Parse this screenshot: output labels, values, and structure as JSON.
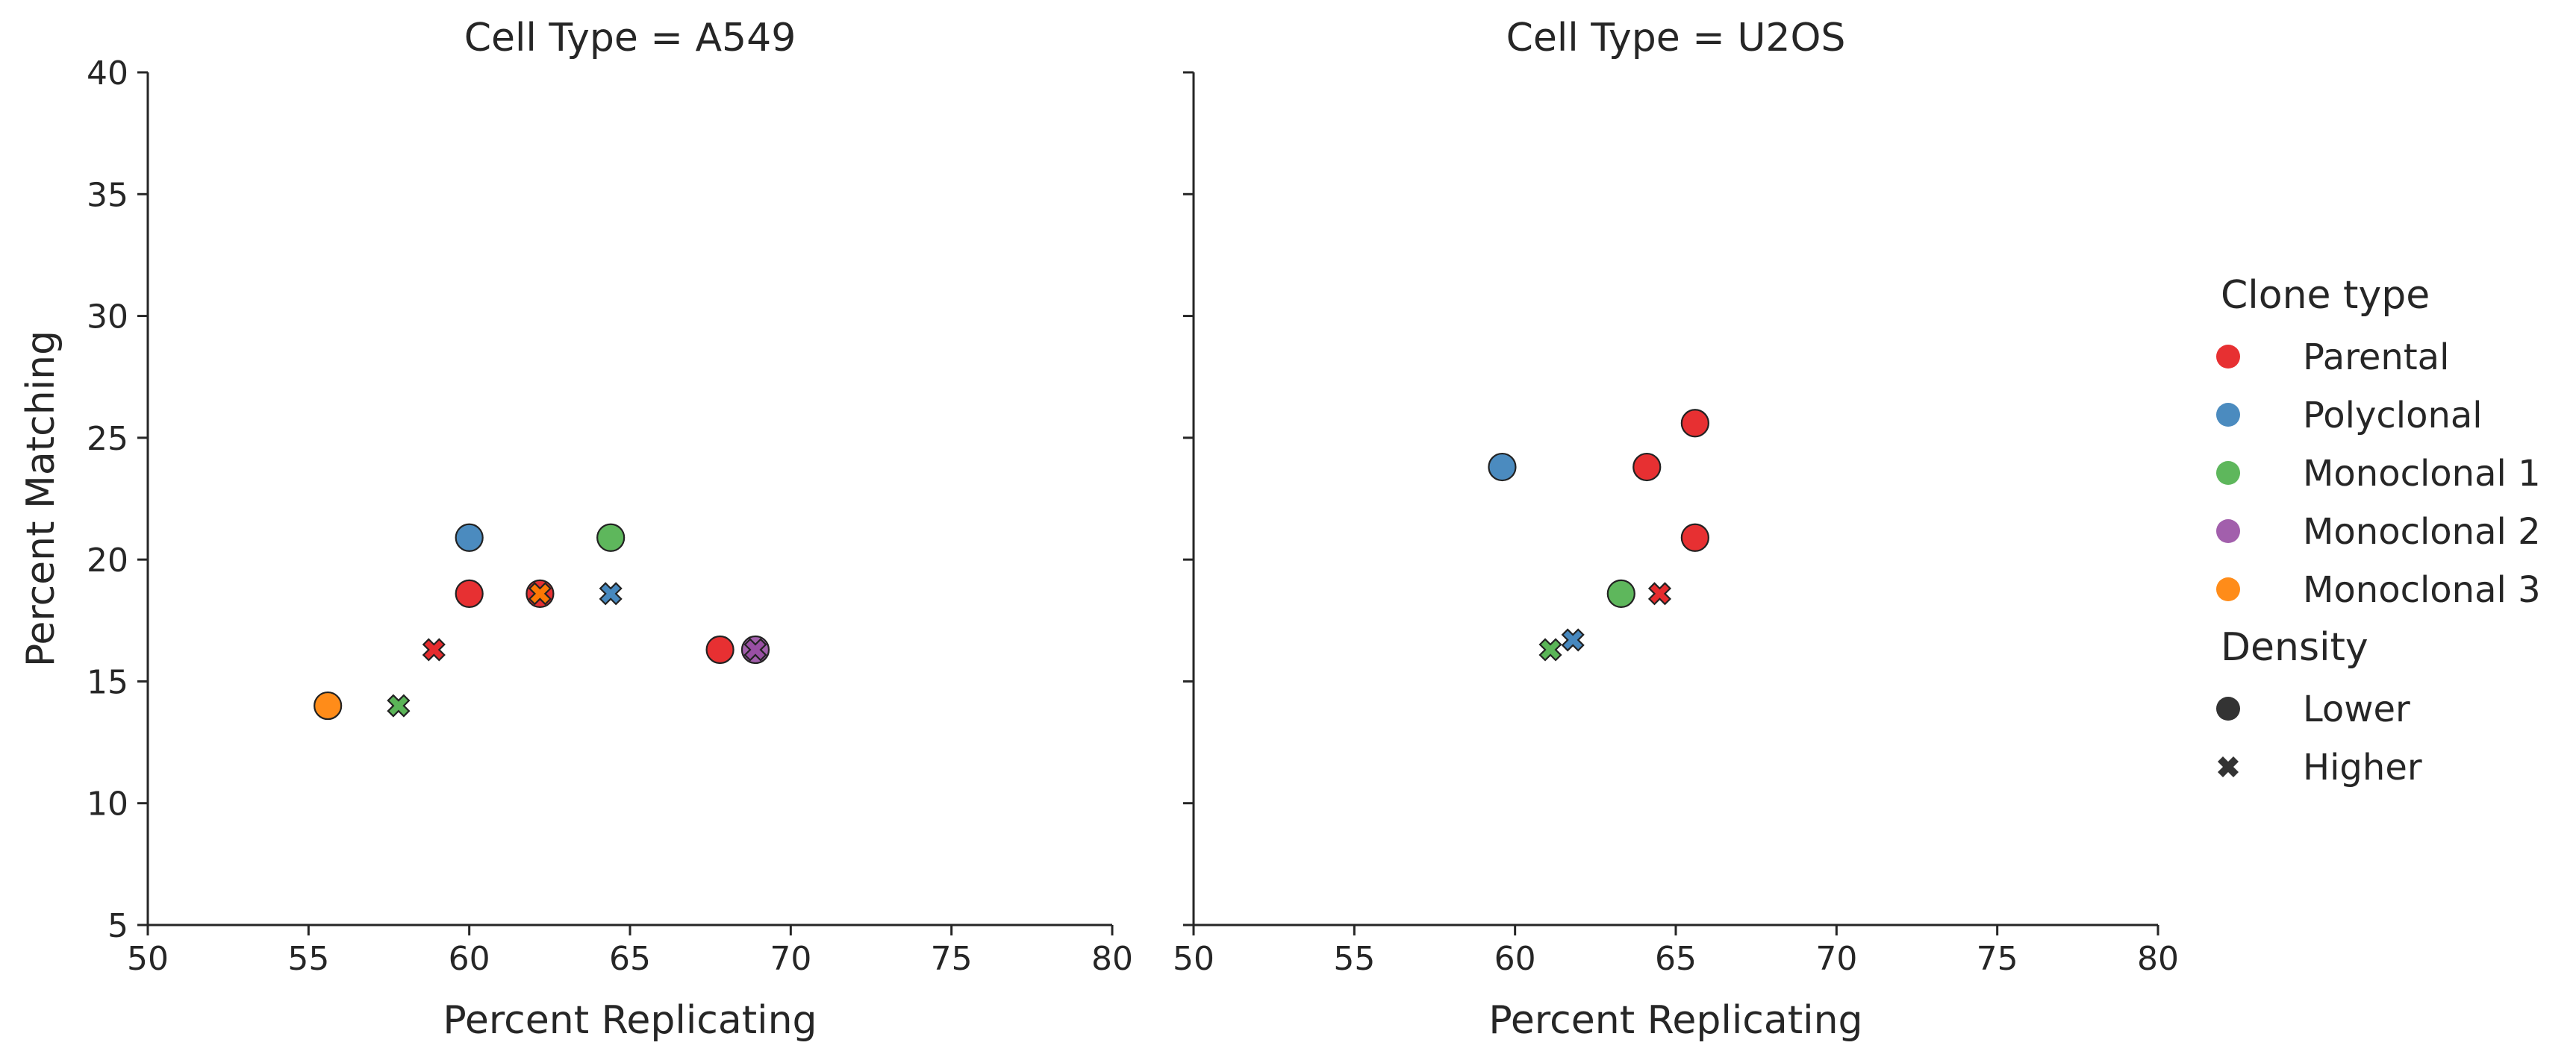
{
  "chart_data": {
    "type": "scatter",
    "xlabel": "Percent Replicating",
    "ylabel": "Percent Matching",
    "xlim": [
      50,
      80
    ],
    "ylim": [
      5,
      40
    ],
    "xticks": [
      "50",
      "55",
      "60",
      "65",
      "70",
      "75",
      "80"
    ],
    "yticks": [
      "5",
      "10",
      "15",
      "20",
      "25",
      "30",
      "35",
      "40"
    ],
    "grid": false,
    "legend_placement": "right",
    "panels": [
      {
        "title": "Cell Type = A549",
        "points": [
          {
            "x": 55.6,
            "y": 14.0,
            "clone": "Monoclonal 3",
            "density": "Lower"
          },
          {
            "x": 57.8,
            "y": 14.0,
            "clone": "Monoclonal 1",
            "density": "Higher"
          },
          {
            "x": 58.9,
            "y": 16.3,
            "clone": "Parental",
            "density": "Higher"
          },
          {
            "x": 60.0,
            "y": 18.6,
            "clone": "Parental",
            "density": "Lower"
          },
          {
            "x": 60.0,
            "y": 20.9,
            "clone": "Polyclonal",
            "density": "Lower"
          },
          {
            "x": 62.2,
            "y": 18.6,
            "clone": "Parental",
            "density": "Lower"
          },
          {
            "x": 62.2,
            "y": 18.6,
            "clone": "Monoclonal 3",
            "density": "Higher"
          },
          {
            "x": 64.4,
            "y": 20.9,
            "clone": "Monoclonal 1",
            "density": "Lower"
          },
          {
            "x": 64.4,
            "y": 18.6,
            "clone": "Polyclonal",
            "density": "Higher"
          },
          {
            "x": 67.8,
            "y": 16.3,
            "clone": "Parental",
            "density": "Lower"
          },
          {
            "x": 68.9,
            "y": 16.3,
            "clone": "Monoclonal 2",
            "density": "Lower"
          },
          {
            "x": 68.9,
            "y": 16.3,
            "clone": "Monoclonal 2",
            "density": "Higher"
          }
        ]
      },
      {
        "title": "Cell Type = U2OS",
        "points": [
          {
            "x": 59.6,
            "y": 23.8,
            "clone": "Polyclonal",
            "density": "Lower"
          },
          {
            "x": 64.1,
            "y": 23.8,
            "clone": "Parental",
            "density": "Lower"
          },
          {
            "x": 65.6,
            "y": 25.6,
            "clone": "Parental",
            "density": "Lower"
          },
          {
            "x": 65.6,
            "y": 20.9,
            "clone": "Parental",
            "density": "Lower"
          },
          {
            "x": 63.3,
            "y": 18.6,
            "clone": "Monoclonal 1",
            "density": "Lower"
          },
          {
            "x": 64.5,
            "y": 18.6,
            "clone": "Parental",
            "density": "Higher"
          },
          {
            "x": 61.1,
            "y": 16.3,
            "clone": "Monoclonal 1",
            "density": "Higher"
          },
          {
            "x": 61.8,
            "y": 16.7,
            "clone": "Polyclonal",
            "density": "Higher"
          }
        ]
      }
    ],
    "legend": {
      "clone_title": "Clone type",
      "clone_types": [
        {
          "name": "Parental",
          "color": "#e41a1c"
        },
        {
          "name": "Polyclonal",
          "color": "#377eb8"
        },
        {
          "name": "Monoclonal 1",
          "color": "#4daf4a"
        },
        {
          "name": "Monoclonal 2",
          "color": "#984ea3"
        },
        {
          "name": "Monoclonal 3",
          "color": "#ff7f00"
        }
      ],
      "density_title": "Density",
      "densities": [
        {
          "name": "Lower",
          "marker": "circle"
        },
        {
          "name": "Higher",
          "marker": "x"
        }
      ]
    }
  }
}
